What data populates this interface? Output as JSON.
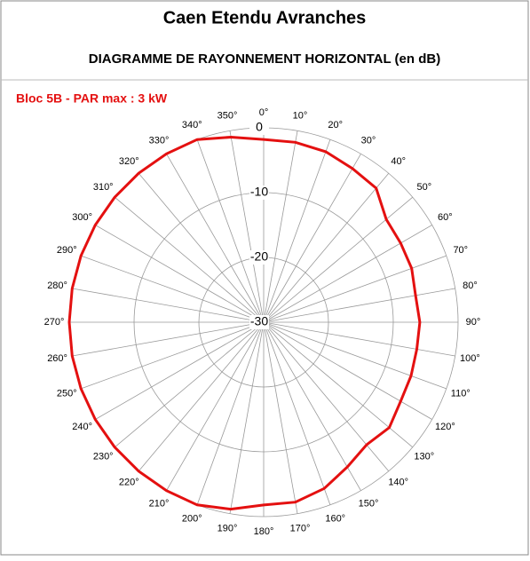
{
  "chart_data": {
    "type": "radar",
    "title": "Caen Etendu Avranches",
    "subtitle": "DIAGRAMME DE RAYONNEMENT HORIZONTAL  (en dB)",
    "categories": [
      "0°",
      "10°",
      "20°",
      "30°",
      "40°",
      "50°",
      "60°",
      "70°",
      "80°",
      "90°",
      "100°",
      "110°",
      "120°",
      "130°",
      "140°",
      "150°",
      "160°",
      "170°",
      "180°",
      "190°",
      "200°",
      "210°",
      "220°",
      "230°",
      "240°",
      "250°",
      "260°",
      "270°",
      "280°",
      "290°",
      "300°",
      "310°",
      "320°",
      "330°",
      "340°",
      "350°"
    ],
    "series": [
      {
        "name": "Bloc 5B - PAR max : 3 kW",
        "color": "#e41010",
        "values": [
          -1.8,
          -1.8,
          -2,
          -2.6,
          -3,
          -5.3,
          -5.6,
          -5.7,
          -6.2,
          -5.9,
          -6,
          -5.8,
          -5.6,
          -4.7,
          -5.3,
          -4.2,
          -2.7,
          -1.8,
          -1.8,
          -0.7,
          0,
          0,
          0,
          0,
          0,
          0,
          0,
          0,
          0,
          0,
          0,
          0,
          0,
          0,
          0,
          -1
        ]
      }
    ],
    "ylim": [
      -30,
      0
    ],
    "yticks": [
      0,
      -10,
      -20,
      -30
    ],
    "grid": true
  }
}
